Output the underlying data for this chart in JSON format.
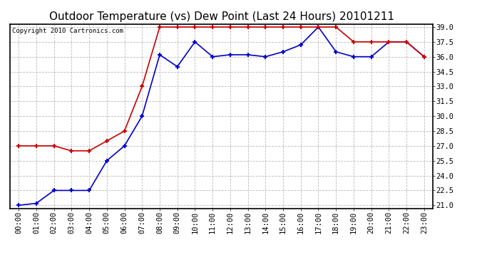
{
  "title": "Outdoor Temperature (vs) Dew Point (Last 24 Hours) 20101211",
  "copyright_text": "Copyright 2010 Cartronics.com",
  "x_labels": [
    "00:00",
    "01:00",
    "02:00",
    "03:00",
    "04:00",
    "05:00",
    "06:00",
    "07:00",
    "08:00",
    "09:00",
    "10:00",
    "11:00",
    "12:00",
    "13:00",
    "14:00",
    "15:00",
    "16:00",
    "17:00",
    "18:00",
    "19:00",
    "20:00",
    "21:00",
    "22:00",
    "23:00"
  ],
  "temp_values": [
    21.0,
    21.2,
    22.5,
    22.5,
    22.5,
    25.5,
    27.0,
    30.0,
    36.2,
    35.0,
    37.5,
    36.0,
    36.2,
    36.2,
    36.0,
    36.5,
    37.2,
    39.0,
    36.5,
    36.0,
    36.0,
    37.5,
    37.5,
    36.0
  ],
  "dew_values": [
    27.0,
    27.0,
    27.0,
    26.5,
    26.5,
    27.5,
    28.5,
    33.0,
    39.0,
    39.0,
    39.0,
    39.0,
    39.0,
    39.0,
    39.0,
    39.0,
    39.0,
    39.0,
    39.0,
    37.5,
    37.5,
    37.5,
    37.5,
    36.0
  ],
  "temp_color": "#0000CC",
  "dew_color": "#CC0000",
  "ylim_min": 21.0,
  "ylim_max": 39.0,
  "y_ticks": [
    21.0,
    22.5,
    24.0,
    25.5,
    27.0,
    28.5,
    30.0,
    31.5,
    33.0,
    34.5,
    36.0,
    37.5,
    39.0
  ],
  "bg_color": "#ffffff",
  "grid_color": "#aaaaaa",
  "marker": "+",
  "marker_size": 5,
  "marker_edge_width": 1.5,
  "line_width": 1.2,
  "title_fontsize": 11,
  "tick_fontsize": 7.5,
  "copyright_fontsize": 6.5
}
